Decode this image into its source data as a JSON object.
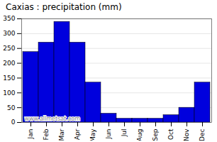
{
  "chart_data": {
    "type": "bar",
    "title": "Caxias : precipitation (mm)",
    "categories": [
      "Jan",
      "Feb",
      "Mar",
      "Apr",
      "May",
      "Jun",
      "Jul",
      "Aug",
      "Sep",
      "Oct",
      "Nov",
      "Dec"
    ],
    "values": [
      238,
      270,
      340,
      270,
      135,
      30,
      13,
      13,
      13,
      25,
      50,
      135
    ],
    "color": "#0000dd",
    "ylim": [
      0,
      350
    ],
    "yticks": [
      0,
      50,
      100,
      150,
      200,
      250,
      300,
      350
    ],
    "grid": true,
    "annotations": [
      "www.allmetsat.com"
    ]
  }
}
